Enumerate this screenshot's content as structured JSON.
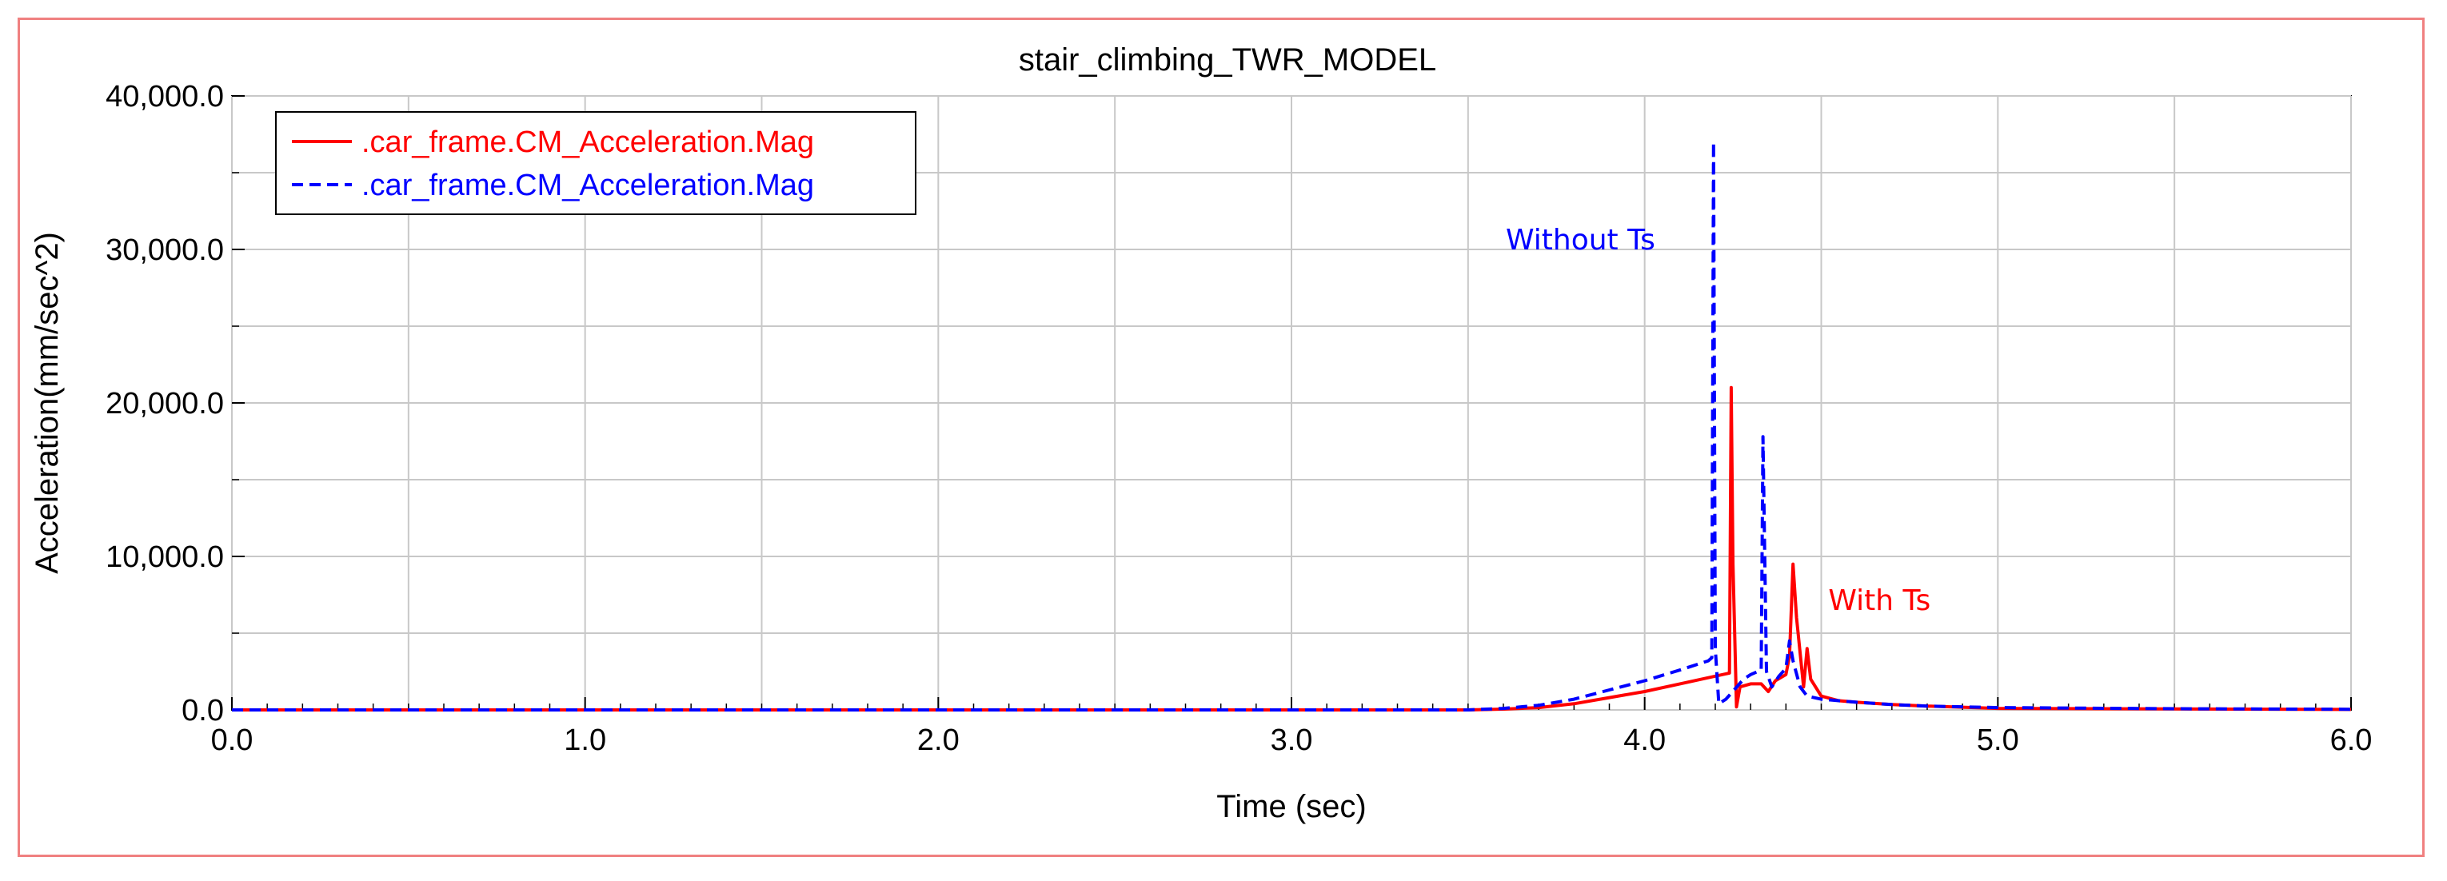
{
  "chart_data": {
    "type": "line",
    "title": "stair_climbing_TWR_MODEL",
    "xlabel": "Time (sec)",
    "ylabel": "Acceleration(mm/sec^2)",
    "xlim": [
      0.0,
      6.0
    ],
    "ylim": [
      0.0,
      40000.0
    ],
    "x_ticks": [
      0.0,
      1.0,
      2.0,
      3.0,
      4.0,
      5.0,
      6.0
    ],
    "x_tick_labels": [
      "0.0",
      "1.0",
      "2.0",
      "3.0",
      "4.0",
      "5.0",
      "6.0"
    ],
    "y_ticks": [
      0,
      10000,
      20000,
      30000,
      40000
    ],
    "y_tick_labels": [
      "0.0",
      "10,000.0",
      "20,000.0",
      "30,000.0",
      "40,000.0"
    ],
    "grid": true,
    "legend_position": "top-left",
    "series": [
      {
        "name": ".car_frame.CM_Acceleration.Mag",
        "color": "#ff0000",
        "style": "solid",
        "points": [
          [
            0.0,
            0
          ],
          [
            3.5,
            0
          ],
          [
            3.6,
            50
          ],
          [
            3.7,
            150
          ],
          [
            3.8,
            400
          ],
          [
            3.9,
            800
          ],
          [
            4.0,
            1200
          ],
          [
            4.1,
            1700
          ],
          [
            4.24,
            2400
          ],
          [
            4.245,
            21000
          ],
          [
            4.25,
            9500
          ],
          [
            4.26,
            200
          ],
          [
            4.27,
            1500
          ],
          [
            4.3,
            1700
          ],
          [
            4.33,
            1700
          ],
          [
            4.35,
            1200
          ],
          [
            4.37,
            1900
          ],
          [
            4.4,
            2300
          ],
          [
            4.41,
            3500
          ],
          [
            4.42,
            9500
          ],
          [
            4.43,
            6000
          ],
          [
            4.45,
            1500
          ],
          [
            4.46,
            4000
          ],
          [
            4.47,
            2000
          ],
          [
            4.5,
            900
          ],
          [
            4.55,
            600
          ],
          [
            4.6,
            500
          ],
          [
            4.7,
            350
          ],
          [
            4.8,
            250
          ],
          [
            5.0,
            100
          ],
          [
            5.5,
            60
          ],
          [
            6.0,
            30
          ]
        ]
      },
      {
        "name": ".car_frame.CM_Acceleration.Mag",
        "color": "#0000ff",
        "style": "dashed",
        "points": [
          [
            0.0,
            0
          ],
          [
            3.5,
            0
          ],
          [
            3.6,
            100
          ],
          [
            3.7,
            300
          ],
          [
            3.8,
            700
          ],
          [
            3.9,
            1300
          ],
          [
            4.0,
            1900
          ],
          [
            4.1,
            2600
          ],
          [
            4.18,
            3200
          ],
          [
            4.19,
            3400
          ],
          [
            4.195,
            37000
          ],
          [
            4.2,
            4000
          ],
          [
            4.21,
            400
          ],
          [
            4.23,
            700
          ],
          [
            4.28,
            2000
          ],
          [
            4.3,
            2300
          ],
          [
            4.32,
            2500
          ],
          [
            4.33,
            2600
          ],
          [
            4.335,
            17800
          ],
          [
            4.345,
            2500
          ],
          [
            4.36,
            1500
          ],
          [
            4.38,
            2200
          ],
          [
            4.4,
            2700
          ],
          [
            4.41,
            4500
          ],
          [
            4.42,
            3200
          ],
          [
            4.44,
            1500
          ],
          [
            4.46,
            900
          ],
          [
            4.5,
            700
          ],
          [
            4.6,
            500
          ],
          [
            4.7,
            350
          ],
          [
            4.8,
            250
          ],
          [
            5.0,
            150
          ],
          [
            5.5,
            80
          ],
          [
            6.0,
            40
          ]
        ]
      }
    ],
    "annotations": [
      {
        "text": "Without Ts",
        "x": 4.03,
        "y": 30000,
        "color": "#0000ff"
      },
      {
        "text": "With Ts",
        "x": 4.52,
        "y": 6500,
        "color": "#ff0000"
      }
    ]
  }
}
